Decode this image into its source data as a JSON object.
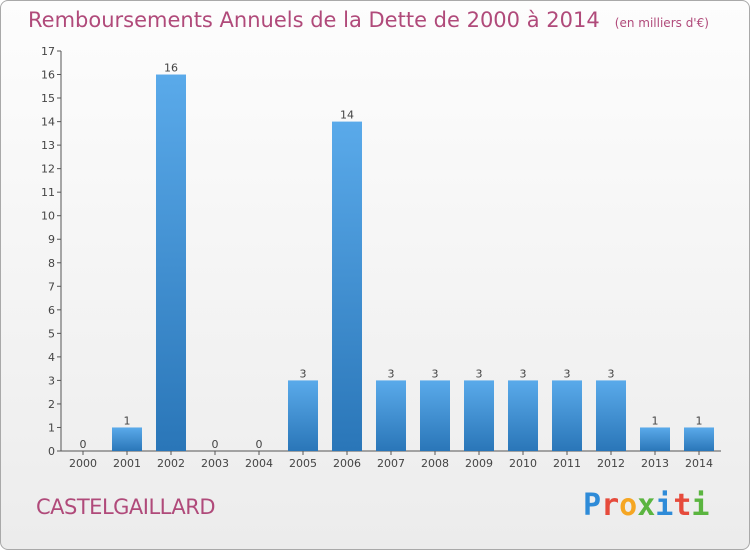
{
  "chart_data": {
    "type": "bar",
    "title": "Remboursements Annuels de la Dette de 2000 à 2014",
    "unit": "(en milliers d'€)",
    "categories": [
      "2000",
      "2001",
      "2002",
      "2003",
      "2004",
      "2005",
      "2006",
      "2007",
      "2008",
      "2009",
      "2010",
      "2011",
      "2012",
      "2013",
      "2014"
    ],
    "values": [
      0,
      1,
      16,
      0,
      0,
      3,
      14,
      3,
      3,
      3,
      3,
      3,
      3,
      1,
      1
    ],
    "ylim": [
      0,
      17
    ],
    "yticks": [
      0,
      1,
      2,
      3,
      4,
      5,
      6,
      7,
      8,
      9,
      10,
      11,
      12,
      13,
      14,
      15,
      16,
      17
    ],
    "xlabel": "",
    "ylabel": "",
    "grid": false,
    "bar_color": "#3d8fd2"
  },
  "commune": "CASTELGAILLARD",
  "logo": {
    "letters": [
      {
        "ch": "P",
        "color": "#2e8bd8"
      },
      {
        "ch": "r",
        "color": "#e64b3c"
      },
      {
        "ch": "o",
        "color": "#f5a623"
      },
      {
        "ch": "x",
        "color": "#5bb540"
      },
      {
        "ch": "i",
        "color": "#2e8bd8"
      },
      {
        "ch": "t",
        "color": "#e64b3c"
      },
      {
        "ch": "i",
        "color": "#5bb540"
      }
    ]
  },
  "colors": {
    "title": "#b04a7a",
    "axis": "#444444"
  }
}
